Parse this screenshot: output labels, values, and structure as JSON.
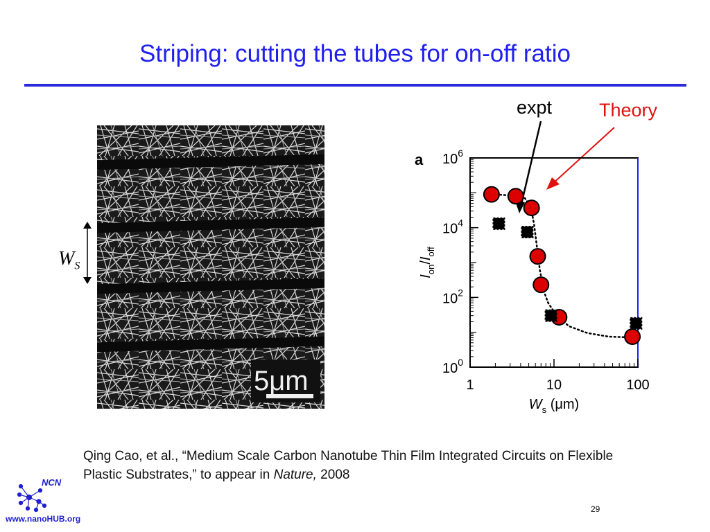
{
  "slide": {
    "title": "Striping: cutting the tubes for on-off ratio",
    "page_number": "29"
  },
  "micrograph": {
    "scale_label": "5μm"
  },
  "ws_label": {
    "main": "W",
    "sub": "S"
  },
  "annotations": {
    "expt": "expt",
    "theory": "Theory",
    "panel_letter": "a"
  },
  "citation": {
    "text_before": "Qing Cao, et al., “Medium Scale Carbon Nanotube Thin Film Integrated Circuits on Flexible Plastic Substrates,” to appear in ",
    "journal": "Nature,",
    "year": " 2008"
  },
  "logo": {
    "name": "NCN",
    "url": "www.nanoHUB.org"
  },
  "colors": {
    "title": "#1f1ff0",
    "theory_marker": "#dd0000",
    "expt_marker": "#000000",
    "theory_arrow": "#e01010",
    "logo": "#1f1fd0"
  },
  "chart_data": {
    "type": "scatter",
    "x_scale": "log",
    "y_scale": "log",
    "xlim": [
      1,
      100
    ],
    "ylim": [
      1,
      1000000
    ],
    "x_ticks": [
      "1",
      "10",
      "100"
    ],
    "y_ticks": [
      {
        "base": "10",
        "exp": "0"
      },
      {
        "base": "10",
        "exp": "2"
      },
      {
        "base": "10",
        "exp": "4"
      },
      {
        "base": "10",
        "exp": "6"
      }
    ],
    "xlabel": {
      "main": "W",
      "sub": "s",
      "unit": " (μm)"
    },
    "ylabel": {
      "i1": "I",
      "s1": "on",
      "slash": "/",
      "i2": "I",
      "s2": "off"
    },
    "series": [
      {
        "name": "Theory",
        "marker": "circle",
        "color": "#dd0000",
        "points": [
          {
            "x": 1.8,
            "y": 90000
          },
          {
            "x": 3.5,
            "y": 80000
          },
          {
            "x": 5.4,
            "y": 37000
          },
          {
            "x": 6.4,
            "y": 1500
          },
          {
            "x": 7.0,
            "y": 230
          },
          {
            "x": 11.5,
            "y": 27
          },
          {
            "x": 86,
            "y": 7.5
          }
        ]
      },
      {
        "name": "expt",
        "marker": "square",
        "color": "#000000",
        "points": [
          {
            "x": 2.2,
            "y": 13000
          },
          {
            "x": 4.8,
            "y": 7500
          },
          {
            "x": 9.2,
            "y": 30
          },
          {
            "x": 95,
            "y": 18
          }
        ]
      }
    ],
    "fit_curve": [
      [
        1.8,
        90000
      ],
      [
        3.0,
        85000
      ],
      [
        4.5,
        70000
      ],
      [
        5.3,
        40000
      ],
      [
        5.8,
        12000
      ],
      [
        6.3,
        2500
      ],
      [
        6.8,
        600
      ],
      [
        7.5,
        160
      ],
      [
        8.5,
        70
      ],
      [
        10.5,
        32
      ],
      [
        15,
        15
      ],
      [
        25,
        9.5
      ],
      [
        45,
        7.5
      ],
      [
        70,
        7.2
      ],
      [
        90,
        7.5
      ],
      [
        98,
        9
      ]
    ]
  }
}
